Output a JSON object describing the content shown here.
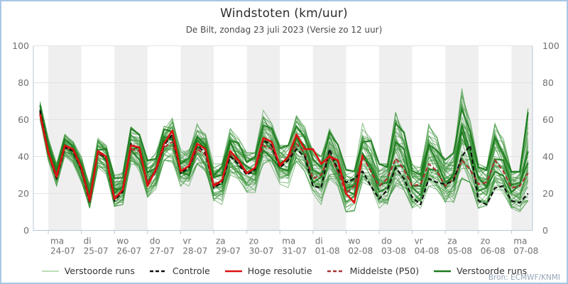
{
  "header": {
    "title": "Windstoten (km/uur)",
    "subtitle": "De Bilt, zondag 23 juli 2023 (Versie zo 12 uur)"
  },
  "footer": {
    "source": "Bron: ECMWF/KNMI"
  },
  "style": {
    "frame_border": "#aac6e4",
    "band_fill": "#efefef",
    "gridline": "#e3e3e3",
    "axis_line": "#b6c8da",
    "tick_label": "#707070",
    "member_color": "rgba(58,148,58,0.60)",
    "highlight_member_color": "#1d7c1d",
    "control_color": "#101010",
    "hires_color": "#dd1111",
    "p50_color": "#aa3434",
    "legend_member_swatch": "#a9d29c"
  },
  "legend": [
    {
      "label": "Verstoorde runs",
      "color": "#a9d29c",
      "dash": "none",
      "width": 1.6
    },
    {
      "label": "Controle",
      "color": "#101010",
      "dash": "5,3",
      "width": 2.4
    },
    {
      "label": "Hoge resolutie",
      "color": "#dd1111",
      "dash": "none",
      "width": 2.6
    },
    {
      "label": "Middelste (P50)",
      "color": "#aa3434",
      "dash": "5,3",
      "width": 2.4
    },
    {
      "label": "Verstoorde runs",
      "color": "#1d7c1d",
      "dash": "none",
      "width": 2.6
    }
  ],
  "chart_data": {
    "type": "line",
    "title": "Windstoten (km/uur)",
    "subtitle": "De Bilt, zondag 23 juli 2023 (Versie zo 12 uur)",
    "ylabel": "",
    "ylim": [
      0,
      100
    ],
    "yticks": [
      0,
      20,
      40,
      60,
      80,
      100
    ],
    "grid": true,
    "legend_position": "bottom",
    "x_day_labels": [
      {
        "dow": "ma",
        "date": "24-07"
      },
      {
        "dow": "di",
        "date": "25-07"
      },
      {
        "dow": "wo",
        "date": "26-07"
      },
      {
        "dow": "do",
        "date": "27-07"
      },
      {
        "dow": "vr",
        "date": "28-07"
      },
      {
        "dow": "za",
        "date": "29-07"
      },
      {
        "dow": "zo",
        "date": "30-07"
      },
      {
        "dow": "ma",
        "date": "31-07"
      },
      {
        "dow": "di",
        "date": "01-08"
      },
      {
        "dow": "wo",
        "date": "02-08"
      },
      {
        "dow": "do",
        "date": "03-08"
      },
      {
        "dow": "vr",
        "date": "04-08"
      },
      {
        "dow": "za",
        "date": "05-08"
      },
      {
        "dow": "zo",
        "date": "06-08"
      },
      {
        "dow": "ma",
        "date": "07-08"
      }
    ],
    "t_start_days": -0.25,
    "time_step_days": 0.25,
    "series": [
      {
        "name": "Controle",
        "role": "control",
        "values": [
          65,
          42,
          28,
          45,
          43,
          33,
          15,
          43,
          39,
          16,
          21,
          47,
          44,
          25,
          32,
          46,
          52,
          31,
          34,
          46,
          42,
          23,
          26,
          40,
          36,
          30,
          33,
          49,
          46,
          34,
          38,
          44,
          40,
          24,
          23,
          44,
          33,
          26,
          28,
          32,
          24,
          17,
          22,
          34,
          28,
          18,
          14,
          28,
          26,
          25,
          27,
          40,
          46,
          16,
          14,
          23,
          24,
          16,
          15,
          20
        ]
      },
      {
        "name": "Hoge resolutie",
        "role": "hires",
        "values": [
          63,
          42,
          29,
          46,
          44,
          34,
          16,
          43,
          40,
          17,
          22,
          46,
          45,
          24,
          33,
          47,
          54,
          32,
          35,
          47,
          44,
          24,
          27,
          43,
          38,
          31,
          34,
          50,
          48,
          35,
          40,
          52,
          44,
          44,
          36,
          40,
          38,
          20,
          15,
          41
        ]
      },
      {
        "name": "Middelste (P50)",
        "role": "p50",
        "values": [
          64,
          43,
          30,
          45,
          43,
          33,
          17,
          42,
          39,
          18,
          21,
          44,
          43,
          26,
          32,
          45,
          48,
          33,
          34,
          44,
          41,
          25,
          27,
          41,
          37,
          31,
          33,
          46,
          44,
          36,
          38,
          47,
          42,
          28,
          30,
          41,
          32,
          20,
          24,
          40,
          32,
          24,
          28,
          39,
          33,
          24,
          25,
          36,
          32,
          24,
          28,
          38,
          33,
          25,
          26,
          38,
          32,
          23,
          24,
          31
        ]
      }
    ],
    "ensemble": {
      "name": "Verstoorde runs",
      "count": 48,
      "seed": 7,
      "highlight_indices": [
        3,
        17,
        31
      ],
      "min": [
        60,
        38,
        24,
        40,
        36,
        26,
        12,
        34,
        30,
        13,
        14,
        36,
        32,
        18,
        22,
        38,
        36,
        24,
        24,
        36,
        32,
        16,
        14,
        30,
        28,
        20,
        20,
        36,
        34,
        24,
        22,
        36,
        32,
        20,
        14,
        28,
        24,
        10,
        10,
        26,
        24,
        12,
        12,
        24,
        22,
        12,
        10,
        24,
        22,
        14,
        14,
        28,
        26,
        12,
        10,
        22,
        20,
        10,
        10,
        16
      ],
      "max": [
        70,
        50,
        36,
        52,
        48,
        40,
        26,
        50,
        46,
        30,
        32,
        56,
        52,
        38,
        42,
        58,
        62,
        44,
        44,
        58,
        54,
        36,
        36,
        55,
        50,
        42,
        42,
        65,
        58,
        46,
        46,
        62,
        56,
        45,
        40,
        55,
        50,
        34,
        32,
        58,
        52,
        36,
        36,
        64,
        56,
        36,
        34,
        60,
        52,
        40,
        42,
        82,
        64,
        36,
        34,
        58,
        50,
        32,
        32,
        66
      ]
    }
  }
}
